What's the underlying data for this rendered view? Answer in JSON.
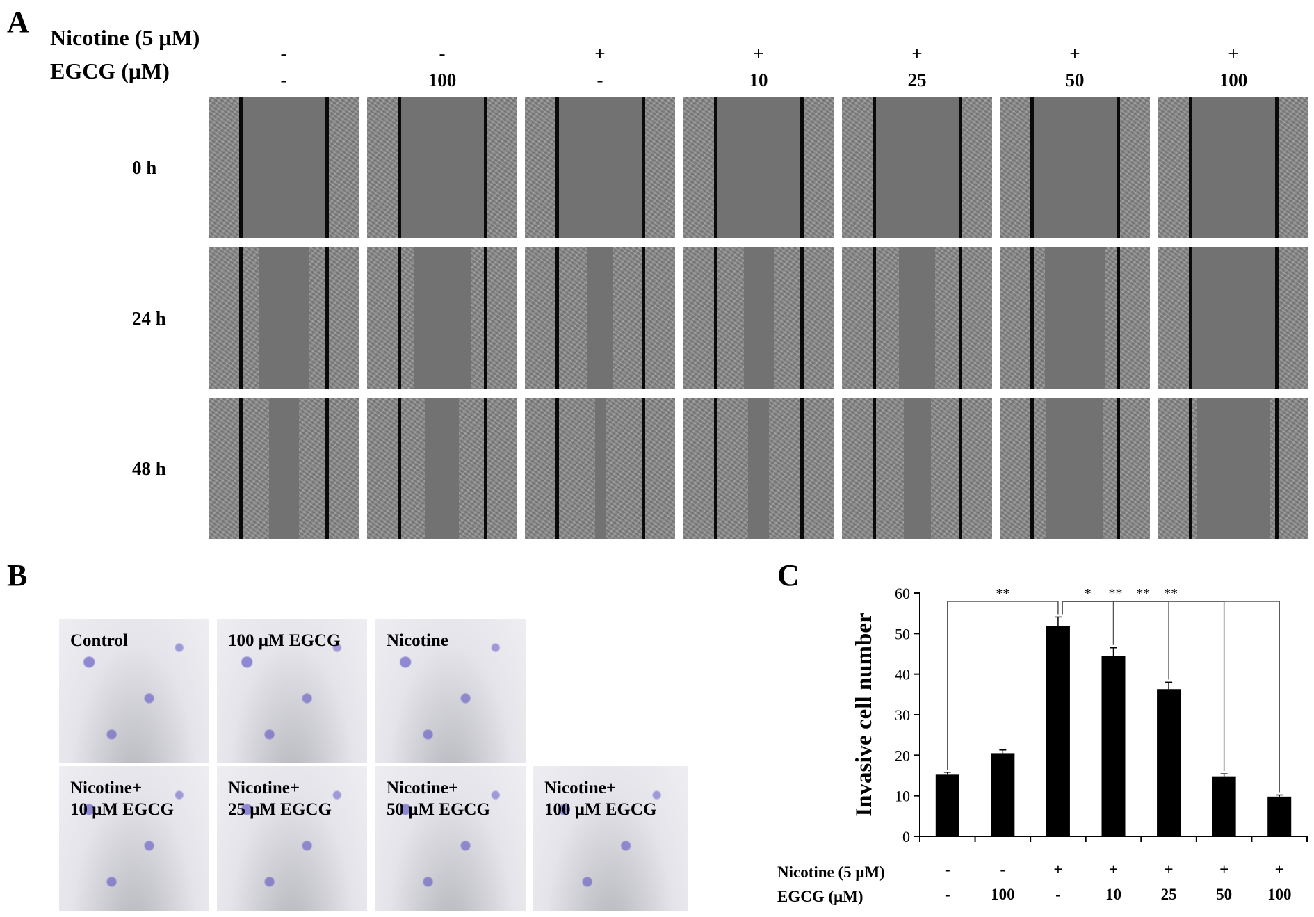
{
  "panel_a": {
    "letter": "A",
    "row_headers": {
      "nicotine": "Nicotine (5 μM)",
      "egcg": "EGCG (μM)"
    },
    "conditions": [
      {
        "nicotine": "-",
        "egcg": "-"
      },
      {
        "nicotine": "-",
        "egcg": "100"
      },
      {
        "nicotine": "+",
        "egcg": "-"
      },
      {
        "nicotine": "+",
        "egcg": "10"
      },
      {
        "nicotine": "+",
        "egcg": "25"
      },
      {
        "nicotine": "+",
        "egcg": "50"
      },
      {
        "nicotine": "+",
        "egcg": "100"
      }
    ],
    "time_labels": [
      "0 h",
      "24 h",
      "48 h"
    ],
    "wound_gap_fraction": [
      [
        0.59,
        0.59,
        0.59,
        0.59,
        0.59,
        0.59,
        0.59
      ],
      [
        0.33,
        0.38,
        0.17,
        0.2,
        0.24,
        0.4,
        0.55
      ],
      [
        0.2,
        0.22,
        0.07,
        0.14,
        0.18,
        0.38,
        0.48
      ]
    ]
  },
  "panel_b": {
    "letter": "B",
    "images": [
      {
        "lines": [
          "Control"
        ]
      },
      {
        "lines": [
          "100 μM EGCG"
        ]
      },
      {
        "lines": [
          "Nicotine"
        ]
      },
      {
        "lines": [
          "Nicotine+",
          "10 μM EGCG"
        ]
      },
      {
        "lines": [
          "Nicotine+",
          "25 μM EGCG"
        ]
      },
      {
        "lines": [
          "Nicotine+",
          "50 μM EGCG"
        ]
      },
      {
        "lines": [
          "Nicotine+",
          "100 μM EGCG"
        ]
      }
    ]
  },
  "panel_c": {
    "letter": "C",
    "chart_data": {
      "type": "bar",
      "ylabel": "Invasive cell number",
      "ylim": [
        0,
        60
      ],
      "yticks": [
        0,
        10,
        20,
        30,
        40,
        50,
        60
      ],
      "row_headers": {
        "nicotine": "Nicotine (5 μM)",
        "egcg": "EGCG (μM)"
      },
      "nicotine": [
        "-",
        "-",
        "+",
        "+",
        "+",
        "+",
        "+"
      ],
      "egcg": [
        "-",
        "100",
        "-",
        "10",
        "25",
        "50",
        "100"
      ],
      "values": [
        15.2,
        20.5,
        51.8,
        44.5,
        36.3,
        14.8,
        9.8
      ],
      "errors": [
        0.6,
        0.8,
        2.3,
        2.0,
        1.7,
        0.6,
        0.4
      ],
      "bar_color": "#000000",
      "significance": [
        {
          "from": 0,
          "to": 2,
          "label": "**"
        },
        {
          "from": 2,
          "to": 3,
          "label": "*"
        },
        {
          "from": 2,
          "to": 4,
          "label": "**"
        },
        {
          "from": 2,
          "to": 5,
          "label": "**"
        },
        {
          "from": 2,
          "to": 6,
          "label": "**"
        }
      ]
    }
  }
}
